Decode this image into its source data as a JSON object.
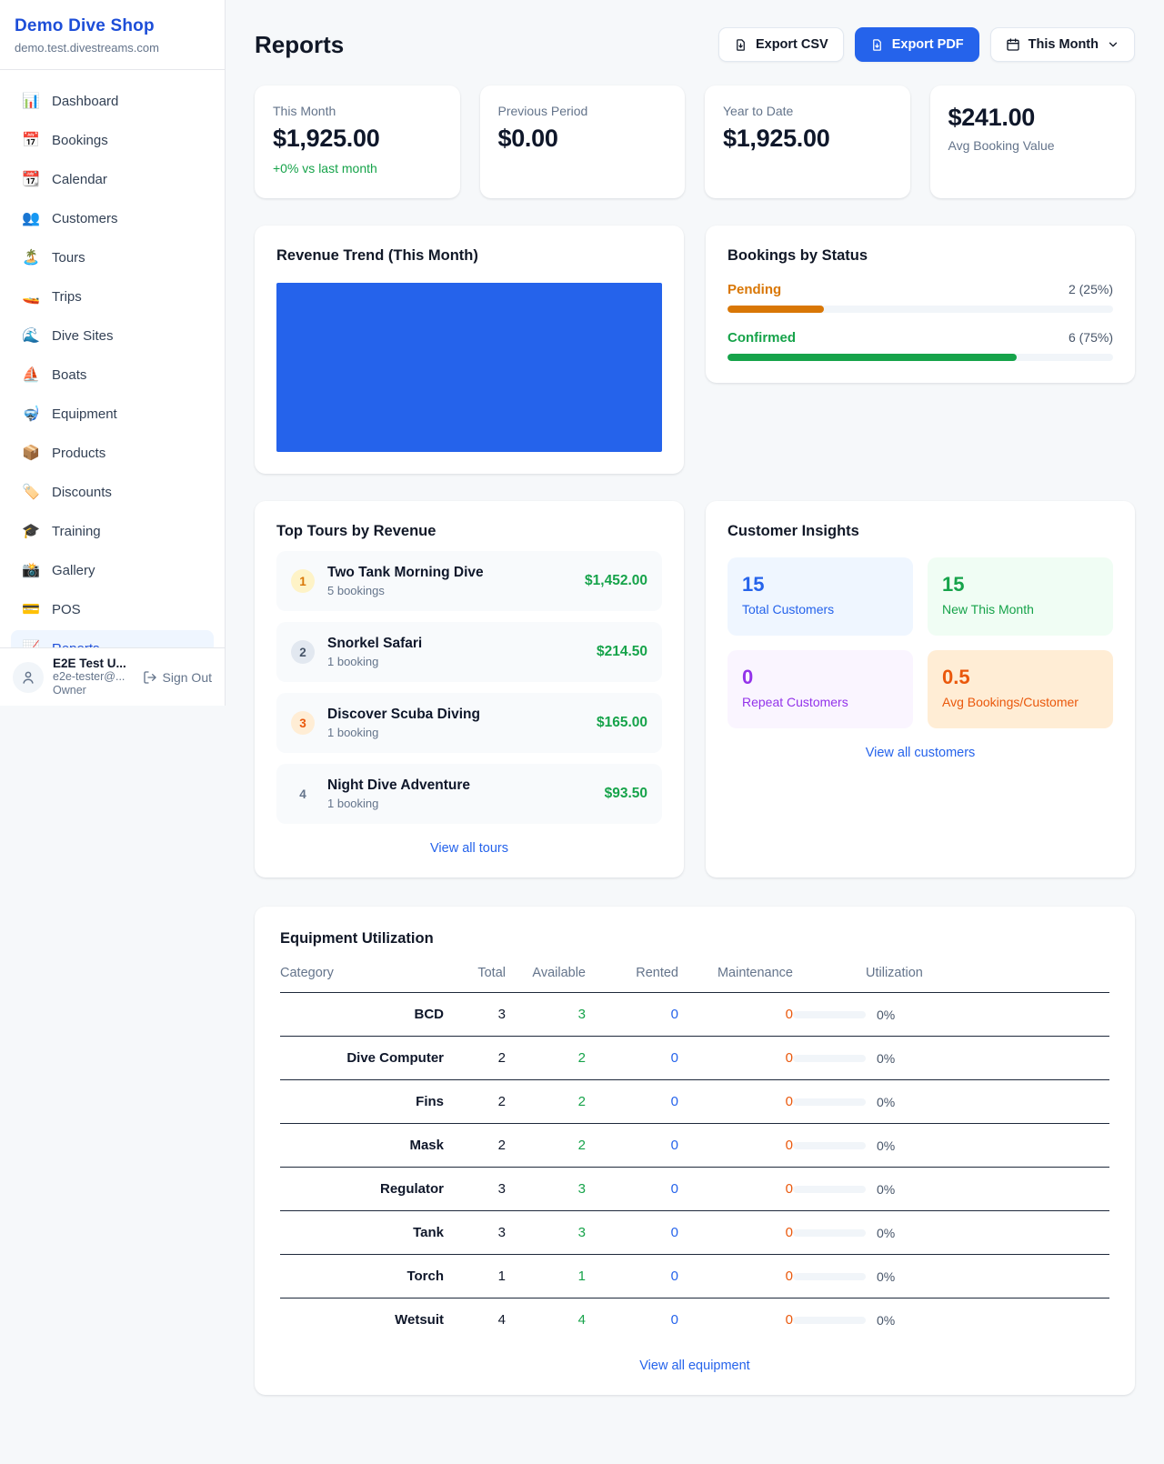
{
  "sidebar": {
    "title": "Demo Dive Shop",
    "subdomain": "demo.test.divestreams.com",
    "items": [
      {
        "label": "Dashboard",
        "icon": "📊"
      },
      {
        "label": "Bookings",
        "icon": "📅"
      },
      {
        "label": "Calendar",
        "icon": "📆"
      },
      {
        "label": "Customers",
        "icon": "👥"
      },
      {
        "label": "Tours",
        "icon": "🏝️"
      },
      {
        "label": "Trips",
        "icon": "🚤"
      },
      {
        "label": "Dive Sites",
        "icon": "🌊"
      },
      {
        "label": "Boats",
        "icon": "⛵"
      },
      {
        "label": "Equipment",
        "icon": "🤿"
      },
      {
        "label": "Products",
        "icon": "📦"
      },
      {
        "label": "Discounts",
        "icon": "🏷️"
      },
      {
        "label": "Training",
        "icon": "🎓"
      },
      {
        "label": "Gallery",
        "icon": "📸"
      },
      {
        "label": "POS",
        "icon": "💳"
      },
      {
        "label": "Reports",
        "icon": "📈"
      }
    ],
    "selected_item": "Reports",
    "user": {
      "name": "E2E Test U...",
      "email": "e2e-tester@...",
      "role": "Owner",
      "sign_out_label": "Sign Out"
    }
  },
  "header": {
    "title": "Reports",
    "export_csv_label": "Export CSV",
    "export_pdf_label": "Export PDF",
    "period_label": "This Month",
    "accent_color": "#2563eb"
  },
  "stats": [
    {
      "label": "This Month",
      "value": "$1,925.00",
      "delta": "+0% vs last month"
    },
    {
      "label": "Previous Period",
      "value": "$0.00"
    },
    {
      "label": "Year to Date",
      "value": "$1,925.00"
    },
    {
      "label": "Avg Booking Value",
      "value": "$241.00"
    }
  ],
  "revenue_trend": {
    "title": "Revenue Trend (This Month)",
    "chart_color": "#2563eb"
  },
  "bookings_by_status": {
    "title": "Bookings by Status",
    "rows": [
      {
        "label": "Pending",
        "count": 2,
        "percent": 25,
        "display": "2 (25%)",
        "color": "#d97706"
      },
      {
        "label": "Confirmed",
        "count": 6,
        "percent": 75,
        "display": "6 (75%)",
        "color": "#16a34a"
      }
    ]
  },
  "top_tours": {
    "title": "Top Tours by Revenue",
    "items": [
      {
        "rank": "1",
        "name": "Two Tank Morning Dive",
        "bookings": "5 bookings",
        "revenue": "$1,452.00"
      },
      {
        "rank": "2",
        "name": "Snorkel Safari",
        "bookings": "1 booking",
        "revenue": "$214.50"
      },
      {
        "rank": "3",
        "name": "Discover Scuba Diving",
        "bookings": "1 booking",
        "revenue": "$165.00"
      },
      {
        "rank": "4",
        "name": "Night Dive Adventure",
        "bookings": "1 booking",
        "revenue": "$93.50"
      }
    ],
    "view_all_label": "View all tours"
  },
  "customer_insights": {
    "title": "Customer Insights",
    "tiles": [
      {
        "value": "15",
        "label": "Total Customers",
        "color": "#2563eb",
        "bg": "#eff6ff"
      },
      {
        "value": "15",
        "label": "New This Month",
        "color": "#16a34a",
        "bg": "#f0fdf4"
      },
      {
        "value": "0",
        "label": "Repeat Customers",
        "color": "#9333ea",
        "bg": "#faf5ff"
      },
      {
        "value": "0.5",
        "label": "Avg Bookings/Customer",
        "color": "#ea580c",
        "bg": "#ffedd5"
      }
    ],
    "view_all_label": "View all customers"
  },
  "equipment": {
    "title": "Equipment Utilization",
    "columns": [
      "Category",
      "Total",
      "Available",
      "Rented",
      "Maintenance",
      "Utilization"
    ],
    "rows": [
      {
        "category": "BCD",
        "total": "3",
        "available": "3",
        "rented": "0",
        "maintenance": "0",
        "utilization": "0%"
      },
      {
        "category": "Dive Computer",
        "total": "2",
        "available": "2",
        "rented": "0",
        "maintenance": "0",
        "utilization": "0%"
      },
      {
        "category": "Fins",
        "total": "2",
        "available": "2",
        "rented": "0",
        "maintenance": "0",
        "utilization": "0%"
      },
      {
        "category": "Mask",
        "total": "2",
        "available": "2",
        "rented": "0",
        "maintenance": "0",
        "utilization": "0%"
      },
      {
        "category": "Regulator",
        "total": "3",
        "available": "3",
        "rented": "0",
        "maintenance": "0",
        "utilization": "0%"
      },
      {
        "category": "Tank",
        "total": "3",
        "available": "3",
        "rented": "0",
        "maintenance": "0",
        "utilization": "0%"
      },
      {
        "category": "Torch",
        "total": "1",
        "available": "1",
        "rented": "0",
        "maintenance": "0",
        "utilization": "0%"
      },
      {
        "category": "Wetsuit",
        "total": "4",
        "available": "4",
        "rented": "0",
        "maintenance": "0",
        "utilization": "0%"
      }
    ],
    "view_all_label": "View all equipment"
  }
}
